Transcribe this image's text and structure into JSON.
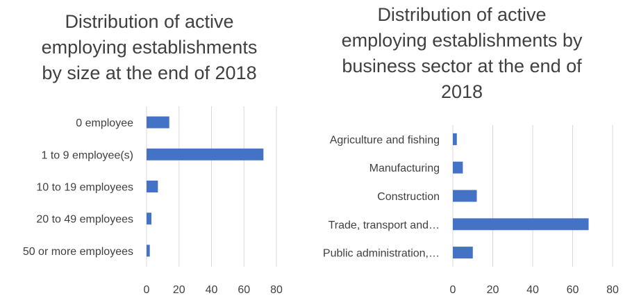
{
  "chart_data": [
    {
      "type": "bar",
      "orientation": "horizontal",
      "title_lines": [
        "Distribution of active",
        "employing establishments",
        "by size at the end of 2018"
      ],
      "categories": [
        "0 employee",
        "1 to 9 employee(s)",
        "10 to 19 employees",
        "20 to 49 employees",
        "50 or more employees"
      ],
      "values": [
        14,
        72,
        7,
        3,
        2
      ],
      "xlim": [
        0,
        80
      ],
      "xticks": [
        "0",
        "20",
        "40",
        "60",
        "80"
      ],
      "grid": true,
      "bar_color": "#4472c4"
    },
    {
      "type": "bar",
      "orientation": "horizontal",
      "title_lines": [
        "Distribution of active",
        "employing establishments by",
        "business sector at the end of",
        "2018"
      ],
      "categories": [
        "Agriculture and fishing",
        "Manufacturing",
        "Construction",
        "Trade, transport and…",
        "Public administration,…"
      ],
      "values": [
        2,
        5,
        12,
        68,
        10
      ],
      "xlim": [
        0,
        80
      ],
      "xticks": [
        "0",
        "20",
        "40",
        "60",
        "80"
      ],
      "grid": true,
      "bar_color": "#4472c4"
    }
  ]
}
